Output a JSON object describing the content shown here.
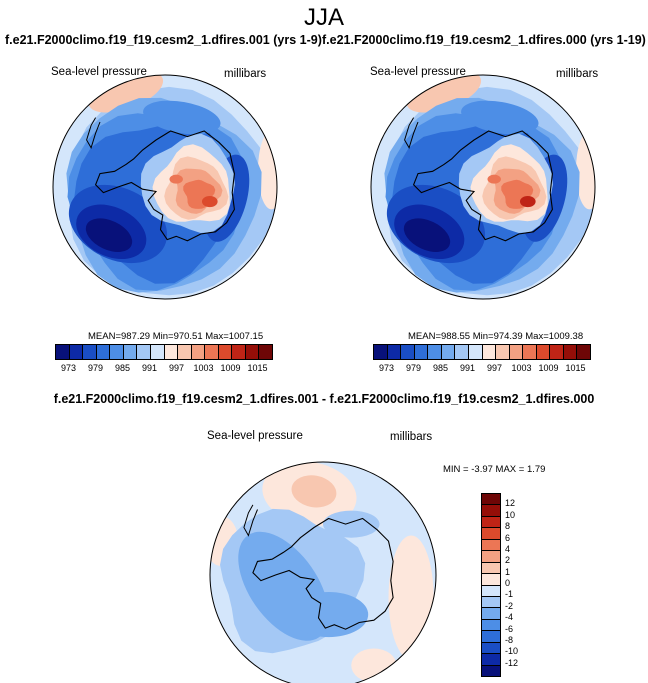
{
  "main_title": "JJA",
  "chart_data": [
    {
      "type": "heatmap",
      "projection": "south-polar-stereographic",
      "case_title": "f.e21.F2000climo.f19_f19.cesm2_1.dfires.001 (yrs 1-9)",
      "left_label": "Sea-level pressure",
      "right_label": "millibars",
      "stats": {
        "mean_label": "MEAN=",
        "mean": "987.29",
        "min_label": "Min=",
        "min": "970.51",
        "max_label": "Max=",
        "max": "1007.15"
      },
      "colorbar": {
        "levels": [
          973,
          976,
          979,
          982,
          985,
          988,
          991,
          994,
          997,
          1000,
          1003,
          1006,
          1009,
          1012,
          1015
        ],
        "tick_labels": [
          "973",
          "979",
          "985",
          "991",
          "997",
          "1003",
          "1009",
          "1015"
        ]
      }
    },
    {
      "type": "heatmap",
      "projection": "south-polar-stereographic",
      "case_title": "f.e21.F2000climo.f19_f19.cesm2_1.dfires.000 (yrs 1-19)",
      "left_label": "Sea-level pressure",
      "right_label": "millibars",
      "stats": {
        "mean_label": "MEAN=",
        "mean": "988.55",
        "min_label": "Min=",
        "min": "974.39",
        "max_label": "Max=",
        "max": "1009.38"
      },
      "colorbar": {
        "levels": [
          973,
          976,
          979,
          982,
          985,
          988,
          991,
          994,
          997,
          1000,
          1003,
          1006,
          1009,
          1012,
          1015
        ],
        "tick_labels": [
          "973",
          "979",
          "985",
          "991",
          "997",
          "1003",
          "1009",
          "1015"
        ]
      }
    },
    {
      "type": "heatmap",
      "projection": "south-polar-stereographic",
      "case_title": "f.e21.F2000climo.f19_f19.cesm2_1.dfires.001 - f.e21.F2000climo.f19_f19.cesm2_1.dfires.000",
      "left_label": "Sea-level pressure",
      "right_label": "millibars",
      "stats": {
        "min_label": "MIN =",
        "min": "-3.97",
        "max_label": "MAX =",
        "max": "1.79"
      },
      "colorbar": {
        "levels": [
          -12,
          -10,
          -8,
          -6,
          -4,
          -2,
          -1,
          0,
          1,
          2,
          4,
          6,
          8,
          10,
          12
        ],
        "tick_labels": [
          "12",
          "10",
          "8",
          "6",
          "4",
          "2",
          "1",
          "0",
          "-1",
          "-2",
          "-4",
          "-6",
          "-8",
          "-10",
          "-12"
        ]
      }
    }
  ],
  "colors": {
    "seq": [
      "#08117a",
      "#0d2aa6",
      "#1a4ec4",
      "#2e6ed8",
      "#4d8ee6",
      "#74abee",
      "#a4c8f5",
      "#d4e6fb",
      "#fde7dc",
      "#f8c7b0",
      "#f3a183",
      "#ec7655",
      "#dc4a2c",
      "#bf2416",
      "#950e08",
      "#6e0606"
    ],
    "diff": [
      "#6e0606",
      "#950e08",
      "#bf2416",
      "#dc4a2c",
      "#ec7655",
      "#f3a183",
      "#f8c7b0",
      "#fde7dc",
      "#d4e6fb",
      "#a4c8f5",
      "#74abee",
      "#4d8ee6",
      "#2e6ed8",
      "#1a4ec4",
      "#0d2aa6",
      "#08117a"
    ]
  }
}
